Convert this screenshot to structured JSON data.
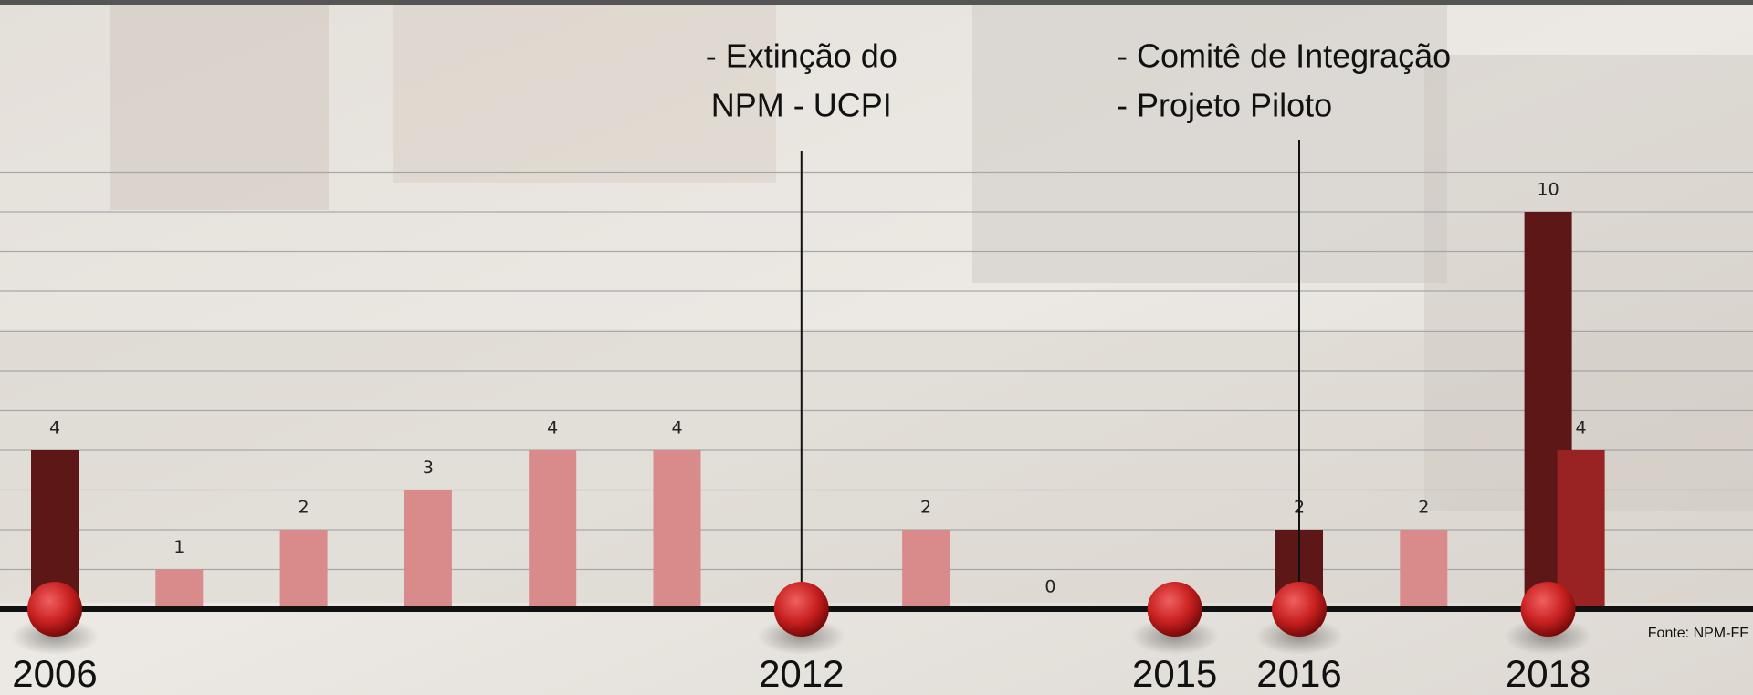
{
  "chart_data": {
    "type": "bar",
    "categories": [
      "2006",
      null,
      null,
      null,
      null,
      null,
      "2012",
      null,
      null,
      "2015",
      "2016",
      null,
      "2018"
    ],
    "series": [
      {
        "color": "#5e1717",
        "values": [
          4,
          null,
          null,
          null,
          null,
          null,
          null,
          null,
          null,
          null,
          2,
          null,
          10
        ]
      },
      {
        "color": "#d98a8a",
        "values": [
          null,
          1,
          2,
          3,
          4,
          4,
          null,
          2,
          0,
          null,
          null,
          2,
          null
        ]
      },
      {
        "color": "#992222",
        "values": [
          null,
          null,
          null,
          null,
          null,
          null,
          null,
          null,
          null,
          null,
          null,
          null,
          4
        ]
      }
    ],
    "ylim": [
      0,
      11
    ],
    "yticks": [
      0,
      1,
      2,
      3,
      4,
      5,
      6,
      7,
      8,
      9,
      10,
      11
    ],
    "grid": true,
    "annotations": [
      {
        "category": "2012",
        "lines": [
          "- Extinção do",
          "NPM - UCPI"
        ]
      },
      {
        "category": "2016",
        "lines": [
          "- Comitê de Integração",
          "- Projeto Piloto"
        ]
      }
    ],
    "source": "Fonte: NPM-FF"
  }
}
